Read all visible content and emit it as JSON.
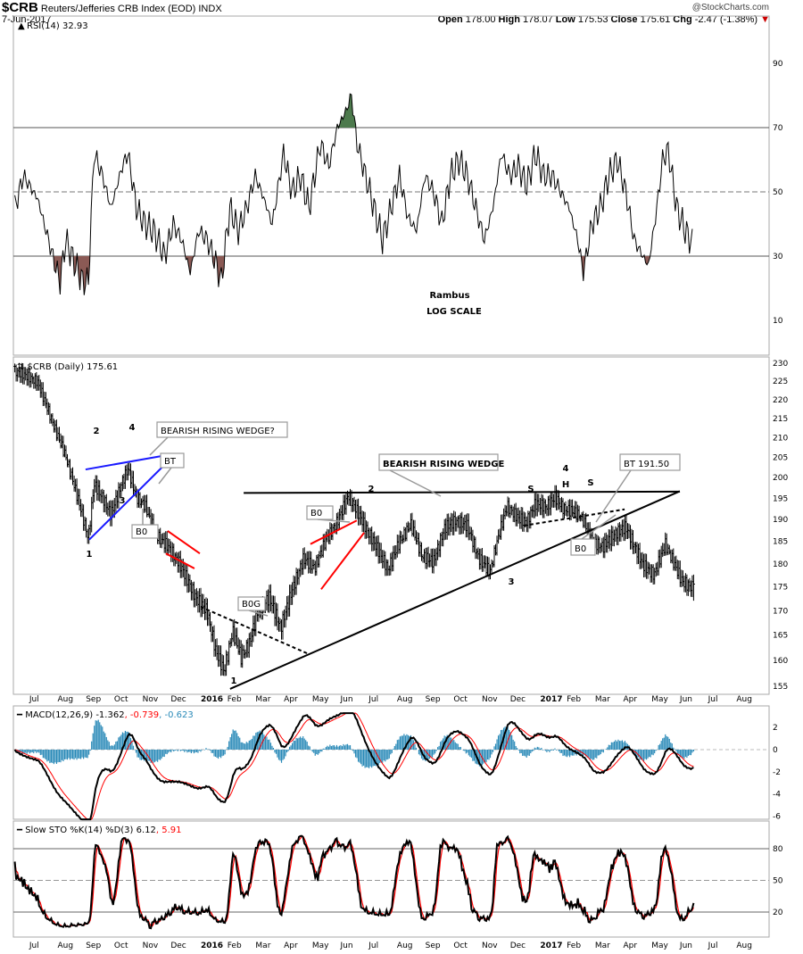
{
  "header": {
    "symbol": "$CRB",
    "name": "Reuters/Jefferies CRB Index (EOD) INDX",
    "date": "7-Jun-2017",
    "watermark": "@StockCharts.com",
    "open_label": "Open",
    "open": "178.00",
    "high_label": "High",
    "high": "178.07",
    "low_label": "Low",
    "low": "175.53",
    "close_label": "Close",
    "close": "175.61",
    "chg_label": "Chg",
    "chg": "-2.47 (-1.38%)",
    "down_arrow": "▼"
  },
  "colors": {
    "price": "#000000",
    "blue": "#1a1aff",
    "red": "#ff0000",
    "rsi_low_fill": "#8b5a55",
    "rsi_high_fill": "#4d7a4d",
    "hist": "#2a8ab8"
  },
  "chart_data": [
    {
      "type": "line",
      "title": "RSI(14) 32.93",
      "yticks": [
        90,
        70,
        50,
        30,
        10
      ],
      "ylim": [
        0,
        100
      ],
      "x_unit": "months since Jul 2015",
      "thresholds": [
        30,
        70
      ],
      "points": [
        [
          -0.8,
          45
        ],
        [
          -0.5,
          55
        ],
        [
          0,
          48
        ],
        [
          0.3,
          38
        ],
        [
          0.6,
          28
        ],
        [
          0.8,
          22
        ],
        [
          1.0,
          35
        ],
        [
          1.3,
          28
        ],
        [
          1.6,
          22
        ],
        [
          1.8,
          22
        ],
        [
          2.0,
          62
        ],
        [
          2.3,
          55
        ],
        [
          2.6,
          45
        ],
        [
          3.0,
          58
        ],
        [
          3.2,
          62
        ],
        [
          3.5,
          45
        ],
        [
          3.8,
          40
        ],
        [
          4.1,
          38
        ],
        [
          4.5,
          30
        ],
        [
          4.8,
          40
        ],
        [
          5.1,
          35
        ],
        [
          5.4,
          25
        ],
        [
          5.7,
          38
        ],
        [
          6.0,
          35
        ],
        [
          6.3,
          28
        ],
        [
          6.5,
          22
        ],
        [
          6.8,
          45
        ],
        [
          7.1,
          38
        ],
        [
          7.4,
          45
        ],
        [
          7.7,
          55
        ],
        [
          8.0,
          48
        ],
        [
          8.3,
          40
        ],
        [
          8.7,
          62
        ],
        [
          9.0,
          50
        ],
        [
          9.3,
          55
        ],
        [
          9.6,
          45
        ],
        [
          10.0,
          65
        ],
        [
          10.3,
          58
        ],
        [
          10.6,
          70
        ],
        [
          10.9,
          75
        ],
        [
          11.1,
          80
        ],
        [
          11.3,
          65
        ],
        [
          11.6,
          55
        ],
        [
          11.9,
          45
        ],
        [
          12.2,
          35
        ],
        [
          12.5,
          45
        ],
        [
          12.8,
          55
        ],
        [
          13.1,
          42
        ],
        [
          13.4,
          38
        ],
        [
          13.7,
          55
        ],
        [
          14.0,
          50
        ],
        [
          14.3,
          40
        ],
        [
          14.6,
          55
        ],
        [
          14.9,
          60
        ],
        [
          15.2,
          55
        ],
        [
          15.5,
          45
        ],
        [
          15.8,
          35
        ],
        [
          16.1,
          45
        ],
        [
          16.4,
          62
        ],
        [
          16.7,
          55
        ],
        [
          17.0,
          58
        ],
        [
          17.3,
          52
        ],
        [
          17.6,
          62
        ],
        [
          17.9,
          55
        ],
        [
          18.2,
          55
        ],
        [
          18.5,
          50
        ],
        [
          18.8,
          45
        ],
        [
          19.1,
          35
        ],
        [
          19.3,
          25
        ],
        [
          19.6,
          40
        ],
        [
          19.9,
          45
        ],
        [
          20.2,
          55
        ],
        [
          20.5,
          60
        ],
        [
          20.8,
          50
        ],
        [
          21.1,
          35
        ],
        [
          21.4,
          30
        ],
        [
          21.6,
          27
        ],
        [
          21.9,
          45
        ],
        [
          22.1,
          60
        ],
        [
          22.3,
          63
        ],
        [
          22.6,
          45
        ],
        [
          22.9,
          38
        ],
        [
          23.2,
          33
        ]
      ],
      "notes": [
        "Rambus",
        "LOG SCALE"
      ]
    },
    {
      "type": "line",
      "title": "$CRB (Daily) 175.61",
      "scale": "log",
      "yticks": [
        230,
        225,
        220,
        215,
        210,
        205,
        200,
        195,
        190,
        185,
        180,
        175,
        170,
        165,
        160,
        155
      ],
      "ylim": [
        153,
        231
      ],
      "points": [
        [
          -0.8,
          227
        ],
        [
          -0.5,
          226
        ],
        [
          0,
          224
        ],
        [
          0.3,
          218
        ],
        [
          0.6,
          212
        ],
        [
          1.0,
          205
        ],
        [
          1.3,
          198
        ],
        [
          1.6,
          191
        ],
        [
          1.8,
          186
        ],
        [
          2.0,
          199
        ],
        [
          2.3,
          196
        ],
        [
          2.6,
          192
        ],
        [
          3.0,
          200
        ],
        [
          3.2,
          203
        ],
        [
          3.5,
          196
        ],
        [
          3.8,
          194
        ],
        [
          4.0,
          190
        ],
        [
          4.3,
          186
        ],
        [
          4.6,
          184
        ],
        [
          5.0,
          180
        ],
        [
          5.3,
          176
        ],
        [
          5.6,
          172
        ],
        [
          6.0,
          169
        ],
        [
          6.3,
          161
        ],
        [
          6.6,
          157
        ],
        [
          6.9,
          165
        ],
        [
          7.2,
          160
        ],
        [
          7.5,
          163
        ],
        [
          7.8,
          170
        ],
        [
          8.2,
          173
        ],
        [
          8.6,
          167
        ],
        [
          9.0,
          175
        ],
        [
          9.4,
          182
        ],
        [
          9.8,
          180
        ],
        [
          10.2,
          186
        ],
        [
          10.6,
          190
        ],
        [
          11.0,
          196
        ],
        [
          11.3,
          192
        ],
        [
          11.6,
          188
        ],
        [
          12.0,
          183
        ],
        [
          12.4,
          178
        ],
        [
          12.8,
          184
        ],
        [
          13.2,
          188
        ],
        [
          13.6,
          181
        ],
        [
          14.0,
          180
        ],
        [
          14.4,
          188
        ],
        [
          14.8,
          190
        ],
        [
          15.2,
          189
        ],
        [
          15.6,
          182
        ],
        [
          16.0,
          179
        ],
        [
          16.3,
          187
        ],
        [
          16.6,
          194
        ],
        [
          17.0,
          191
        ],
        [
          17.3,
          190
        ],
        [
          17.6,
          194
        ],
        [
          18.0,
          193
        ],
        [
          18.3,
          195
        ],
        [
          18.6,
          192
        ],
        [
          19.0,
          191
        ],
        [
          19.3,
          189
        ],
        [
          19.6,
          184
        ],
        [
          20.0,
          183
        ],
        [
          20.4,
          186
        ],
        [
          20.8,
          188
        ],
        [
          21.1,
          184
        ],
        [
          21.4,
          180
        ],
        [
          21.8,
          178
        ],
        [
          22.2,
          185
        ],
        [
          22.5,
          181
        ],
        [
          22.8,
          177
        ],
        [
          23.2,
          175.6
        ]
      ],
      "trendlines": [
        {
          "color": "blue",
          "from": [
            1.83,
            185.4
          ],
          "to": [
            4.67,
            204.4
          ]
        },
        {
          "color": "blue",
          "from": [
            1.7,
            202.0
          ],
          "to": [
            4.35,
            205.3
          ]
        },
        {
          "color": "red",
          "from": [
            4.6,
            187.4
          ],
          "to": [
            5.74,
            182.3
          ]
        },
        {
          "color": "red",
          "from": [
            4.54,
            182.3
          ],
          "to": [
            5.55,
            179.0
          ]
        },
        {
          "color": "black",
          "dash": true,
          "from": [
            5.77,
            170.8
          ],
          "to": [
            9.56,
            161.3
          ]
        },
        {
          "color": "black",
          "from": [
            6.81,
            154.5
          ],
          "to": [
            22.71,
            196.7
          ]
        },
        {
          "color": "black",
          "from": [
            7.29,
            196.3
          ],
          "to": [
            22.71,
            196.6
          ]
        },
        {
          "color": "red",
          "from": [
            9.65,
            184.4
          ],
          "to": [
            11.29,
            189.8
          ]
        },
        {
          "color": "red",
          "from": [
            10.03,
            174.5
          ],
          "to": [
            11.55,
            187.0
          ]
        },
        {
          "color": "black",
          "dash": true,
          "from": [
            17.19,
            188.6
          ],
          "to": [
            20.76,
            192.4
          ]
        }
      ],
      "wave_labels": [
        {
          "text": "1",
          "color": "blue"
        },
        {
          "text": "2",
          "color": "blue"
        },
        {
          "text": "3",
          "color": "blue"
        },
        {
          "text": "4",
          "color": "blue"
        },
        {
          "text": "1",
          "color": "black"
        },
        {
          "text": "2",
          "color": "black"
        },
        {
          "text": "3",
          "color": "black"
        },
        {
          "text": "4",
          "color": "black"
        },
        {
          "text": "S",
          "color": "black"
        },
        {
          "text": "H",
          "color": "black"
        },
        {
          "text": "S",
          "color": "black"
        }
      ],
      "callouts": [
        {
          "text": "BEARISH RISING WEDGE?",
          "color": "blue"
        },
        {
          "text": "BT",
          "color": "blue"
        },
        {
          "text": "B0",
          "color": "blue"
        },
        {
          "text": "B0G",
          "color": "blue"
        },
        {
          "text": "B0",
          "color": "blue"
        },
        {
          "text": "BEARISH RISING WEDGE",
          "color": "black"
        },
        {
          "text": "BT 191.50",
          "color": "blue"
        },
        {
          "text": "B0",
          "color": "blue"
        }
      ]
    },
    {
      "type": "line",
      "title": "MACD(12,26,9)",
      "values": {
        "macd": "-1.362",
        "signal": "-0.739",
        "histogram": "-0.623"
      },
      "yticks": [
        2,
        0,
        -2,
        -4,
        -6
      ],
      "ylim": [
        -6.5,
        3.5
      ]
    },
    {
      "type": "line",
      "title": "Slow STO %K(14) %D(3)",
      "values": {
        "k": "6.12",
        "d": "5.91"
      },
      "yticks": [
        80,
        50,
        20
      ],
      "ylim": [
        0,
        100
      ]
    }
  ],
  "x_axis": [
    "Jul",
    "Aug",
    "Sep",
    "Oct",
    "Nov",
    "Dec",
    "2016",
    "Feb",
    "Mar",
    "Apr",
    "May",
    "Jun",
    "Jul",
    "Aug",
    "Sep",
    "Oct",
    "Nov",
    "Dec",
    "2017",
    "Feb",
    "Mar",
    "Apr",
    "May",
    "Jun",
    "Jul",
    "Aug"
  ]
}
